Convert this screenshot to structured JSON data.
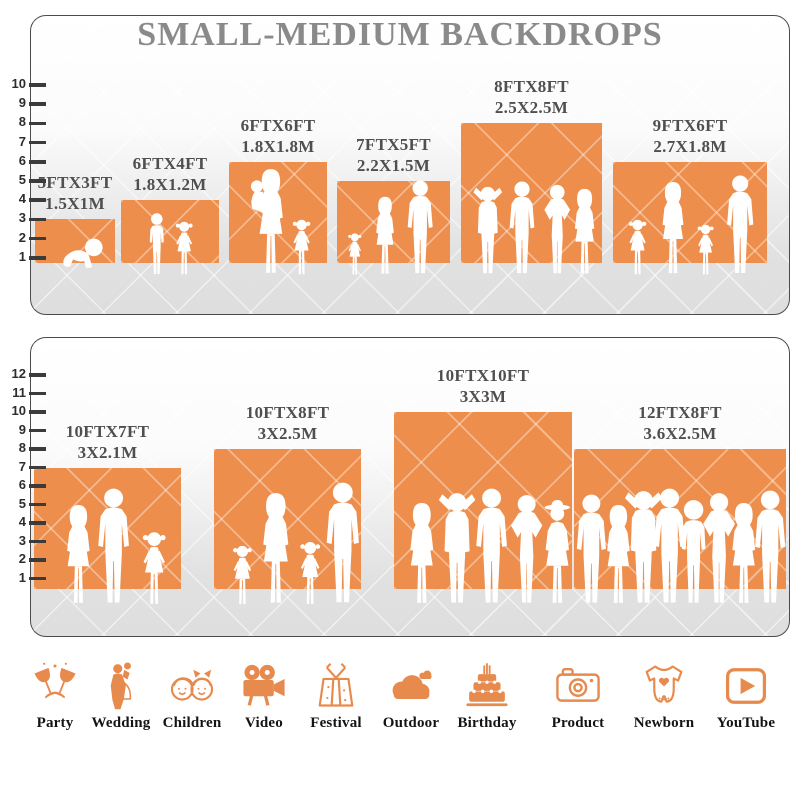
{
  "title": "SMALL-MEDIUM BACKDROPS",
  "colors": {
    "backdrop_orange": "#ed8e4c",
    "icon_orange": "#e78a4d",
    "title_gray": "#8a8a8a",
    "label_gray": "#4f4f4f",
    "floor_gray": "#dedede"
  },
  "panels": [
    {
      "name": "small-medium-backdrops",
      "ruler": [
        "1",
        "2",
        "3",
        "4",
        "5",
        "6",
        "7",
        "8",
        "9",
        "10"
      ],
      "blocks": [
        {
          "size_ft": "5FTX3FT",
          "size_m": "1.5X1M",
          "width_ft": 5,
          "height_ft": 3
        },
        {
          "size_ft": "6FTX4FT",
          "size_m": "1.8X1.2M",
          "width_ft": 6,
          "height_ft": 4
        },
        {
          "size_ft": "6FTX6FT",
          "size_m": "1.8X1.8M",
          "width_ft": 6,
          "height_ft": 6
        },
        {
          "size_ft": "7FTX5FT",
          "size_m": "2.2X1.5M",
          "width_ft": 7,
          "height_ft": 5
        },
        {
          "size_ft": "8FTX8FT",
          "size_m": "2.5X2.5M",
          "width_ft": 8,
          "height_ft": 8
        },
        {
          "size_ft": "9FTX6FT",
          "size_m": "2.7X1.8M",
          "width_ft": 9,
          "height_ft": 6
        }
      ]
    },
    {
      "name": "large-backdrops",
      "ruler": [
        "1",
        "2",
        "3",
        "4",
        "5",
        "6",
        "7",
        "8",
        "9",
        "10",
        "11",
        "12"
      ],
      "blocks": [
        {
          "size_ft": "10FTX7FT",
          "size_m": "3X2.1M",
          "width_ft": 10,
          "height_ft": 7
        },
        {
          "size_ft": "10FTX8FT",
          "size_m": "3X2.5M",
          "width_ft": 10,
          "height_ft": 8
        },
        {
          "size_ft": "10FTX10FT",
          "size_m": "3X3M",
          "width_ft": 10,
          "height_ft": 10
        },
        {
          "size_ft": "12FTX8FT",
          "size_m": "3.6X2.5M",
          "width_ft": 12,
          "height_ft": 8
        }
      ]
    }
  ],
  "categories": [
    {
      "label": "Party",
      "icon": "party-icon"
    },
    {
      "label": "Wedding",
      "icon": "wedding-icon"
    },
    {
      "label": "Children",
      "icon": "children-icon"
    },
    {
      "label": "Video",
      "icon": "video-icon"
    },
    {
      "label": "Festival",
      "icon": "festival-icon"
    },
    {
      "label": "Outdoor",
      "icon": "outdoor-icon"
    },
    {
      "label": "Birthday",
      "icon": "birthday-icon"
    },
    {
      "label": "Product",
      "icon": "product-icon"
    },
    {
      "label": "Newborn",
      "icon": "newborn-icon"
    },
    {
      "label": "YouTube",
      "icon": "youtube-icon"
    }
  ]
}
